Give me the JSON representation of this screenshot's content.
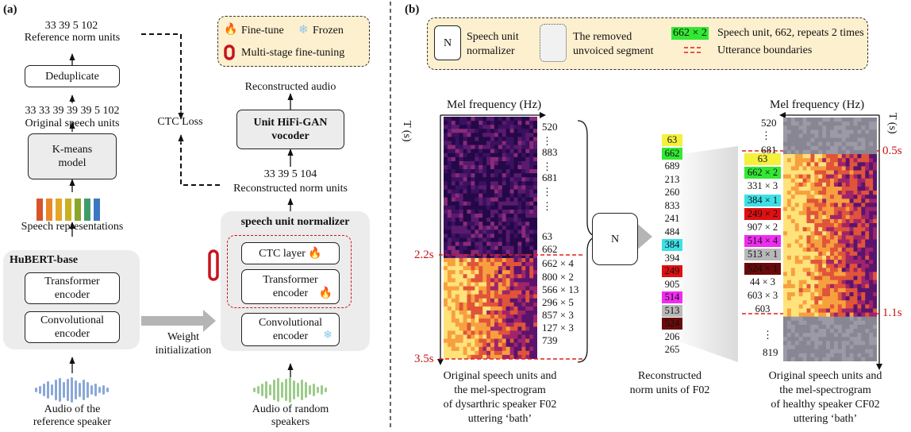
{
  "panel_a": {
    "label": "(a)",
    "ref_norm_units": "33 39 5 102",
    "ref_norm_units_label": "Reference norm units",
    "deduplicate": "Deduplicate",
    "orig_units": "33 33 39 39 39 5 102",
    "orig_units_label": "Original speech units",
    "kmeans_line1": "K-means",
    "kmeans_line2": "model",
    "speech_reps": "Speech representations",
    "hubert_title": "HuBERT-base",
    "transformer_l1": "Transformer",
    "transformer_l2": "encoder",
    "conv_l1": "Convolutional",
    "conv_l2": "encoder",
    "audio_ref_l1": "Audio of the",
    "audio_ref_l2": "reference speaker",
    "ctc_loss": "CTC Loss",
    "legend_finetune": "Fine-tune",
    "legend_frozen": "Frozen",
    "legend_multistage": "Multi-stage fine-tuning",
    "reconstructed_audio": "Reconstructed audio",
    "vocoder_l1": "Unit HiFi-GAN",
    "vocoder_l2": "vocoder",
    "recon_units": "33 39 5 104",
    "recon_units_label": "Reconstructed norm units",
    "normalizer_title": "speech unit normalizer",
    "ctc_layer": "CTC layer",
    "transformer2_l1": "Transformer",
    "transformer2_l2": "encoder",
    "conv2_l1": "Convolutional",
    "conv2_l2": "encoder",
    "weight_l1": "Weight",
    "weight_l2": "initialization",
    "audio_rand_l1": "Audio of random",
    "audio_rand_l2": "speakers"
  },
  "panel_b": {
    "label": "(b)",
    "legend": {
      "n_symbol": "N",
      "normalizer_l1": "Speech unit",
      "normalizer_l2": "normalizer",
      "removed_l1": "The removed",
      "removed_l2": "unvoiced segment",
      "unit_example": "662 × 2",
      "unit_desc": "Speech unit, 662, repeats 2 times",
      "boundary_desc": "Utterance boundaries"
    },
    "left_spec": {
      "axis_title": "Mel frequency (Hz)",
      "time_label": "T (s)",
      "t_start": "2.2s",
      "t_end": "3.5s",
      "units": [
        "520",
        "⋮",
        "883",
        "⋮",
        "681",
        "⋮",
        "⋮",
        "63",
        "662",
        "662 × 4",
        "800 × 2",
        "566 × 13",
        "296 × 5",
        "857 × 3",
        "127 × 3",
        "739"
      ],
      "caption_l1": "Original speech units and",
      "caption_l2": "the mel-spectrogram",
      "caption_l3": "of dysarthric speaker F02",
      "caption_l4": "uttering ‘bath’"
    },
    "n_symbol": "N",
    "middle_units": [
      {
        "text": "63",
        "color": "#f5f03c"
      },
      {
        "text": "662",
        "color": "#33e833"
      },
      {
        "text": "689",
        "color": ""
      },
      {
        "text": "213",
        "color": ""
      },
      {
        "text": "260",
        "color": ""
      },
      {
        "text": "833",
        "color": ""
      },
      {
        "text": "241",
        "color": ""
      },
      {
        "text": "484",
        "color": ""
      },
      {
        "text": "384",
        "color": "#3de0e6"
      },
      {
        "text": "394",
        "color": ""
      },
      {
        "text": "249",
        "color": "#e01010"
      },
      {
        "text": "905",
        "color": ""
      },
      {
        "text": "514",
        "color": "#f02cf0"
      },
      {
        "text": "513",
        "color": "#b8b8b8"
      },
      {
        "text": "524",
        "color": "#6a0a0a"
      },
      {
        "text": "206",
        "color": ""
      },
      {
        "text": "265",
        "color": ""
      }
    ],
    "middle_caption_l1": "Reconstructed",
    "middle_caption_l2": "norm units of F02",
    "right_spec": {
      "axis_title": "Mel frequency (Hz)",
      "time_label": "T (s)",
      "t_start": "0.5s",
      "t_end": "1.1s",
      "units_top": [
        "520",
        "⋮",
        "681"
      ],
      "units": [
        {
          "text": "63",
          "color": "#f5f03c"
        },
        {
          "text": "662 × 2",
          "color": "#33e833"
        },
        {
          "text": "331 × 3",
          "color": ""
        },
        {
          "text": "384 × 1",
          "color": "#3de0e6"
        },
        {
          "text": "249 × 2",
          "color": "#e01010"
        },
        {
          "text": "907 × 2",
          "color": ""
        },
        {
          "text": "514 × 4",
          "color": "#f02cf0"
        },
        {
          "text": "513 × 1",
          "color": "#b8b8b8"
        },
        {
          "text": "524 × 1",
          "color": "#6a0a0a"
        },
        {
          "text": "44 × 3",
          "color": ""
        },
        {
          "text": "603 × 3",
          "color": ""
        },
        {
          "text": "603",
          "color": ""
        }
      ],
      "units_bottom": [
        "⋮",
        "819"
      ],
      "caption_l1": "Original speech units and",
      "caption_l2": "the mel-spectrogram",
      "caption_l3": "of healthy speaker CF02",
      "caption_l4": "uttering ‘bath’"
    }
  },
  "colors": {
    "fire": "#f07d1e",
    "frozen": "#8cc6ea",
    "boundary": "#e01e1e",
    "multistage": "#c8141e",
    "legend_bg": "#fdf0cf"
  }
}
